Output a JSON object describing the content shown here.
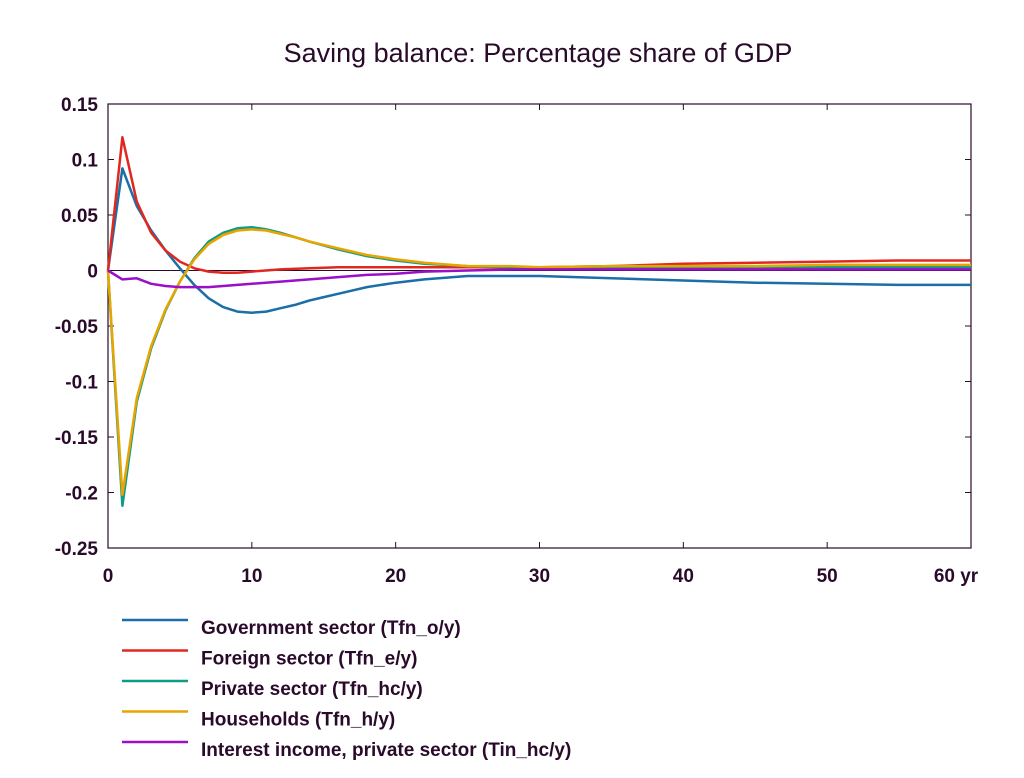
{
  "chart_data": {
    "type": "line",
    "title": "Saving balance: Percentage share of GDP",
    "x_unit_label": "yr",
    "xlim": [
      0,
      60
    ],
    "ylim": [
      -0.25,
      0.15
    ],
    "x_ticks": [
      0,
      10,
      20,
      30,
      40,
      50,
      60
    ],
    "x_tick_labels": [
      "0",
      "10",
      "20",
      "30",
      "40",
      "50",
      "60 yr"
    ],
    "y_ticks": [
      0.15,
      0.1,
      0.05,
      0,
      -0.05,
      -0.1,
      -0.15,
      -0.2,
      -0.25
    ],
    "y_tick_labels": [
      "0.15",
      "0.1",
      "0.05",
      "0",
      "-0.05",
      "-0.1",
      "-0.15",
      "-0.2",
      "-0.25"
    ],
    "grid": false,
    "zero_line": true,
    "legend_position": "bottom",
    "series": [
      {
        "name": "Government sector (Tfn_o/y)",
        "color": "#1a6fa8",
        "x": [
          0,
          1,
          2,
          3,
          4,
          5,
          6,
          7,
          8,
          9,
          10,
          11,
          12,
          13,
          14,
          15,
          16,
          18,
          20,
          22,
          25,
          28,
          30,
          35,
          40,
          45,
          50,
          55,
          60
        ],
        "y": [
          0,
          0.092,
          0.058,
          0.036,
          0.018,
          0.002,
          -0.013,
          -0.025,
          -0.033,
          -0.037,
          -0.038,
          -0.037,
          -0.034,
          -0.031,
          -0.027,
          -0.024,
          -0.021,
          -0.015,
          -0.011,
          -0.008,
          -0.005,
          -0.005,
          -0.005,
          -0.007,
          -0.009,
          -0.011,
          -0.012,
          -0.013,
          -0.013
        ]
      },
      {
        "name": "Foreign sector (Tfn_e/y)",
        "color": "#e02820",
        "x": [
          0,
          1,
          2,
          3,
          4,
          5,
          6,
          7,
          8,
          9,
          10,
          12,
          14,
          16,
          18,
          20,
          25,
          30,
          35,
          40,
          45,
          50,
          55,
          60
        ],
        "y": [
          0,
          0.12,
          0.062,
          0.034,
          0.018,
          0.008,
          0.002,
          -0.001,
          -0.002,
          -0.002,
          -0.001,
          0.001,
          0.002,
          0.003,
          0.003,
          0.003,
          0.003,
          0.003,
          0.004,
          0.006,
          0.007,
          0.008,
          0.009,
          0.009
        ]
      },
      {
        "name": "Private sector (Tfn_hc/y)",
        "color": "#109a88",
        "x": [
          0,
          1,
          2,
          3,
          4,
          5,
          6,
          7,
          8,
          9,
          10,
          11,
          12,
          13,
          14,
          16,
          18,
          20,
          22,
          25,
          28,
          30,
          35,
          40,
          45,
          50,
          55,
          60
        ],
        "y": [
          0,
          -0.212,
          -0.118,
          -0.07,
          -0.036,
          -0.01,
          0.011,
          0.026,
          0.034,
          0.038,
          0.039,
          0.037,
          0.034,
          0.03,
          0.026,
          0.019,
          0.013,
          0.009,
          0.006,
          0.004,
          0.003,
          0.003,
          0.003,
          0.003,
          0.003,
          0.003,
          0.003,
          0.003
        ]
      },
      {
        "name": "Households (Tfn_h/y)",
        "color": "#e8a400",
        "x": [
          0,
          1,
          2,
          3,
          4,
          5,
          6,
          7,
          8,
          9,
          10,
          11,
          12,
          13,
          14,
          16,
          18,
          20,
          22,
          25,
          28,
          30,
          35,
          40,
          45,
          50,
          55,
          60
        ],
        "y": [
          0,
          -0.202,
          -0.115,
          -0.068,
          -0.035,
          -0.01,
          0.01,
          0.024,
          0.032,
          0.036,
          0.037,
          0.036,
          0.033,
          0.03,
          0.026,
          0.02,
          0.014,
          0.01,
          0.007,
          0.004,
          0.004,
          0.003,
          0.004,
          0.004,
          0.004,
          0.005,
          0.005,
          0.005
        ]
      },
      {
        "name": "Interest income, private sector (Tin_hc/y)",
        "color": "#9a10c8",
        "x": [
          0,
          1,
          2,
          3,
          4,
          5,
          6,
          7,
          8,
          10,
          12,
          15,
          18,
          20,
          22,
          25,
          28,
          30,
          35,
          40,
          45,
          50,
          55,
          60
        ],
        "y": [
          0,
          -0.008,
          -0.007,
          -0.012,
          -0.014,
          -0.015,
          -0.015,
          -0.015,
          -0.014,
          -0.012,
          -0.01,
          -0.007,
          -0.004,
          -0.003,
          -0.001,
          0,
          0.001,
          0.001,
          0.001,
          0.001,
          0.001,
          0.001,
          0.001,
          0.001
        ]
      }
    ]
  }
}
